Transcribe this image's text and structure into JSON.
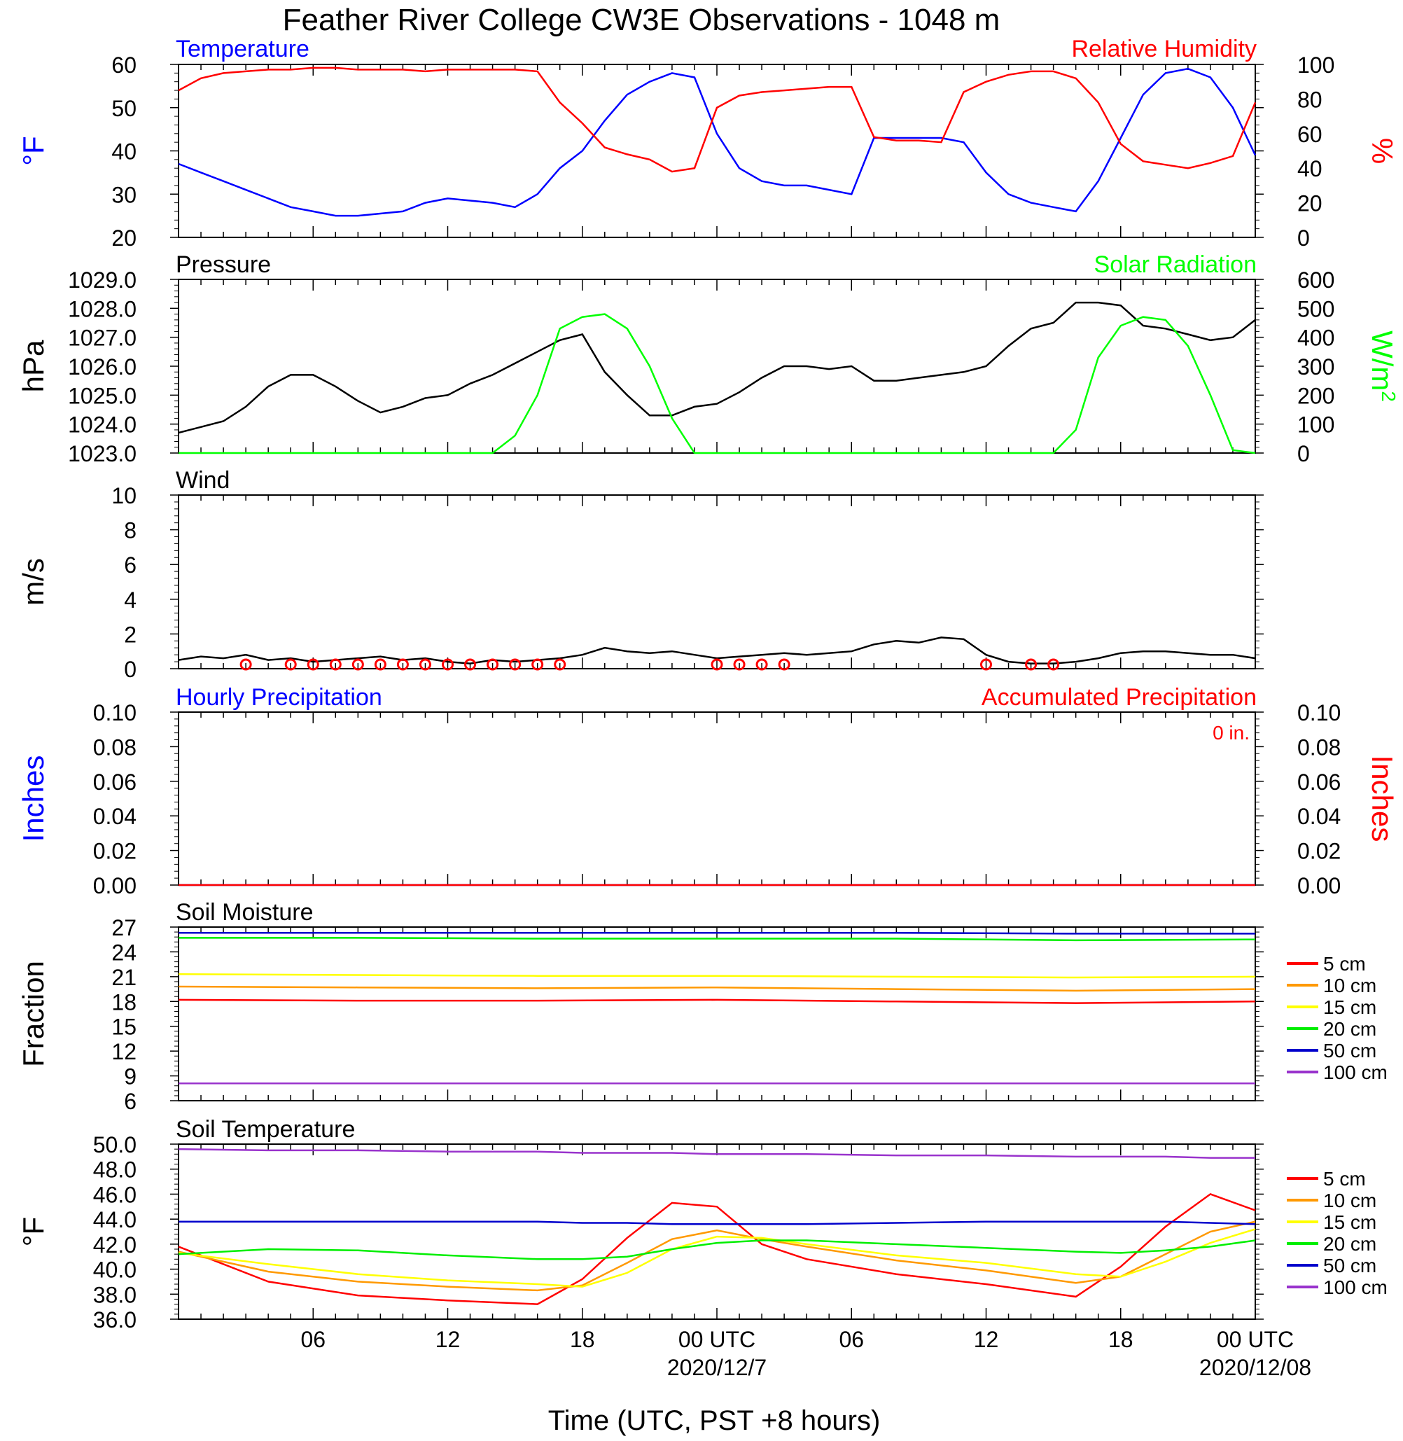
{
  "title": "Feather River College CW3E Observations - 1048 m",
  "x_axis": {
    "title": "Time (UTC, PST +8 hours)",
    "tick_labels": [
      "06",
      "12",
      "18",
      "00 UTC",
      "06",
      "12",
      "18",
      "00 UTC"
    ],
    "date_labels": [
      "2020/12/7",
      "2020/12/08"
    ]
  },
  "colors": {
    "temperature": "#0000ff",
    "humidity": "#ff0000",
    "pressure": "#000000",
    "solar": "#00ff00",
    "wind": "#000000",
    "wind_barbs": "#ff0000",
    "precip_hourly": "#0000ff",
    "precip_accum": "#ff0000",
    "soil_5cm": "#ff0000",
    "soil_10cm": "#ff9900",
    "soil_15cm": "#ffff00",
    "soil_20cm": "#00ee00",
    "soil_50cm": "#0000cc",
    "soil_100cm": "#9933cc"
  },
  "chart_data": [
    {
      "type": "line",
      "panel": "temperature-humidity",
      "left_title": "Temperature",
      "right_title": "Relative Humidity",
      "left_unit": "°F",
      "right_unit": "%",
      "left_ticks": [
        "60",
        "50",
        "40",
        "30",
        "20"
      ],
      "right_ticks": [
        "100",
        "80",
        "60",
        "40",
        "20",
        "0"
      ],
      "ylim_left": [
        20,
        60
      ],
      "ylim_right": [
        0,
        100
      ],
      "x_hours": [
        1,
        2,
        3,
        4,
        5,
        6,
        7,
        8,
        9,
        10,
        11,
        12,
        13,
        14,
        15,
        16,
        17,
        18,
        19,
        20,
        21,
        22,
        23,
        24,
        25,
        26,
        27,
        28,
        29,
        30,
        31,
        32,
        33,
        34,
        35,
        36,
        37,
        38,
        39,
        40,
        41,
        42,
        43,
        44,
        45,
        46,
        47,
        48,
        49
      ],
      "series": [
        {
          "name": "Temperature",
          "axis": "left",
          "values": [
            37,
            35,
            33,
            31,
            29,
            27,
            26,
            25,
            25,
            25.5,
            26,
            28,
            29,
            28.5,
            28,
            27,
            30,
            36,
            40,
            47,
            53,
            56,
            58,
            57,
            44,
            36,
            33,
            32,
            32,
            31,
            30,
            43,
            43,
            43,
            43,
            42,
            35,
            30,
            28,
            27,
            26,
            33,
            43,
            53,
            58,
            59,
            57,
            50,
            39
          ]
        },
        {
          "name": "Relative Humidity",
          "axis": "right",
          "values": [
            85,
            92,
            95,
            96,
            97,
            97,
            98,
            98,
            97,
            97,
            97,
            96,
            97,
            97,
            97,
            97,
            96,
            78,
            66,
            52,
            48,
            45,
            38,
            40,
            75,
            82,
            84,
            85,
            86,
            87,
            87,
            58,
            56,
            56,
            55,
            84,
            90,
            94,
            96,
            96,
            92,
            78,
            54,
            44,
            42,
            40,
            43,
            47,
            78
          ]
        }
      ]
    },
    {
      "type": "line",
      "panel": "pressure-solar",
      "left_title": "Pressure",
      "right_title": "Solar Radiation",
      "left_unit": "hPa",
      "right_unit": "W/m",
      "right_unit_sup": "2",
      "left_ticks": [
        "1029.0",
        "1028.0",
        "1027.0",
        "1026.0",
        "1025.0",
        "1024.0",
        "1023.0"
      ],
      "right_ticks": [
        "600",
        "500",
        "400",
        "300",
        "200",
        "100",
        "0"
      ],
      "ylim_left": [
        1023,
        1029
      ],
      "ylim_right": [
        0,
        600
      ],
      "x_hours": [
        1,
        2,
        3,
        4,
        5,
        6,
        7,
        8,
        9,
        10,
        11,
        12,
        13,
        14,
        15,
        16,
        17,
        18,
        19,
        20,
        21,
        22,
        23,
        24,
        25,
        26,
        27,
        28,
        29,
        30,
        31,
        32,
        33,
        34,
        35,
        36,
        37,
        38,
        39,
        40,
        41,
        42,
        43,
        44,
        45,
        46,
        47,
        48,
        49
      ],
      "series": [
        {
          "name": "Pressure",
          "axis": "left",
          "values": [
            1023.7,
            1023.9,
            1024.1,
            1024.6,
            1025.3,
            1025.7,
            1025.7,
            1025.3,
            1024.8,
            1024.4,
            1024.6,
            1024.9,
            1025.0,
            1025.4,
            1025.7,
            1026.1,
            1026.5,
            1026.9,
            1027.1,
            1025.8,
            1025.0,
            1024.3,
            1024.3,
            1024.6,
            1024.7,
            1025.1,
            1025.6,
            1026.0,
            1026.0,
            1025.9,
            1026.0,
            1025.5,
            1025.5,
            1025.6,
            1025.7,
            1025.8,
            1026.0,
            1026.7,
            1027.3,
            1027.5,
            1028.2,
            1028.2,
            1028.1,
            1027.4,
            1027.3,
            1027.1,
            1026.9,
            1027.0,
            1027.6
          ]
        },
        {
          "name": "Solar Radiation",
          "axis": "right",
          "values": [
            0,
            0,
            0,
            0,
            0,
            0,
            0,
            0,
            0,
            0,
            0,
            0,
            0,
            0,
            0,
            60,
            200,
            430,
            470,
            480,
            430,
            300,
            120,
            0,
            0,
            0,
            0,
            0,
            0,
            0,
            0,
            0,
            0,
            0,
            0,
            0,
            0,
            0,
            0,
            0,
            80,
            330,
            440,
            470,
            460,
            370,
            200,
            10,
            0
          ]
        }
      ]
    },
    {
      "type": "line",
      "panel": "wind",
      "left_title": "Wind",
      "left_unit": "m/s",
      "left_ticks": [
        "10",
        "8",
        "6",
        "4",
        "2",
        "0"
      ],
      "ylim_left": [
        0,
        10
      ],
      "x_hours": [
        1,
        2,
        3,
        4,
        5,
        6,
        7,
        8,
        9,
        10,
        11,
        12,
        13,
        14,
        15,
        16,
        17,
        18,
        19,
        20,
        21,
        22,
        23,
        24,
        25,
        26,
        27,
        28,
        29,
        30,
        31,
        32,
        33,
        34,
        35,
        36,
        37,
        38,
        39,
        40,
        41,
        42,
        43,
        44,
        45,
        46,
        47,
        48,
        49
      ],
      "series": [
        {
          "name": "Wind speed",
          "values": [
            0.5,
            0.7,
            0.6,
            0.8,
            0.5,
            0.6,
            0.4,
            0.5,
            0.6,
            0.7,
            0.5,
            0.6,
            0.4,
            0.3,
            0.5,
            0.4,
            0.5,
            0.6,
            0.8,
            1.2,
            1.0,
            0.9,
            1.0,
            0.8,
            0.6,
            0.7,
            0.8,
            0.9,
            0.8,
            0.9,
            1.0,
            1.4,
            1.6,
            1.5,
            1.8,
            1.7,
            0.8,
            0.4,
            0.3,
            0.3,
            0.4,
            0.6,
            0.9,
            1.0,
            1.0,
            0.9,
            0.8,
            0.8,
            0.6
          ]
        }
      ],
      "calm_marker_hours": [
        4,
        6,
        7,
        8,
        9,
        10,
        11,
        12,
        13,
        14,
        15,
        16,
        17,
        18,
        25,
        26,
        27,
        28,
        37,
        39,
        40
      ]
    },
    {
      "type": "line",
      "panel": "precipitation",
      "left_title": "Hourly Precipitation",
      "right_title": "Accumulated Precipitation",
      "accum_label": "0 in.",
      "left_unit": "Inches",
      "right_unit": "Inches",
      "left_ticks": [
        "0.10",
        "0.08",
        "0.06",
        "0.04",
        "0.02",
        "0.00"
      ],
      "right_ticks": [
        "0.10",
        "0.08",
        "0.06",
        "0.04",
        "0.02",
        "0.00"
      ],
      "ylim_left": [
        0,
        0.1
      ],
      "ylim_right": [
        0,
        0.1
      ],
      "x_hours": [
        1,
        49
      ],
      "series": [
        {
          "name": "Hourly Precipitation",
          "axis": "left",
          "values": [
            0,
            0
          ]
        },
        {
          "name": "Accumulated Precipitation",
          "axis": "right",
          "values": [
            0,
            0
          ]
        }
      ]
    },
    {
      "type": "line",
      "panel": "soil-moisture",
      "left_title": "Soil Moisture",
      "left_unit": "Fraction",
      "left_ticks": [
        "27",
        "24",
        "21",
        "18",
        "15",
        "12",
        "9",
        "6"
      ],
      "ylim_left": [
        6,
        27
      ],
      "x_hours": [
        1,
        9,
        17,
        25,
        33,
        41,
        49
      ],
      "series": [
        {
          "name": "5 cm",
          "values": [
            18.2,
            18.1,
            18.1,
            18.2,
            18.0,
            17.8,
            18.0
          ]
        },
        {
          "name": "10 cm",
          "values": [
            19.8,
            19.7,
            19.6,
            19.7,
            19.5,
            19.3,
            19.5
          ]
        },
        {
          "name": "15 cm",
          "values": [
            21.3,
            21.2,
            21.1,
            21.1,
            21.0,
            20.9,
            21.0
          ]
        },
        {
          "name": "20 cm",
          "values": [
            25.7,
            25.7,
            25.6,
            25.6,
            25.6,
            25.4,
            25.5
          ]
        },
        {
          "name": "50 cm",
          "values": [
            26.3,
            26.3,
            26.3,
            26.3,
            26.3,
            26.2,
            26.2
          ]
        },
        {
          "name": "100 cm",
          "values": [
            8.1,
            8.1,
            8.1,
            8.1,
            8.1,
            8.1,
            8.1
          ]
        }
      ]
    },
    {
      "type": "line",
      "panel": "soil-temperature",
      "left_title": "Soil Temperature",
      "left_unit": "°F",
      "left_ticks": [
        "50.0",
        "48.0",
        "46.0",
        "44.0",
        "42.0",
        "40.0",
        "38.0",
        "36.0"
      ],
      "ylim_left": [
        36,
        50
      ],
      "x_hours": [
        1,
        5,
        9,
        13,
        17,
        19,
        21,
        23,
        25,
        27,
        29,
        33,
        37,
        41,
        43,
        45,
        47,
        49
      ],
      "series": [
        {
          "name": "5 cm",
          "values": [
            41.8,
            39.0,
            37.9,
            37.5,
            37.2,
            39.2,
            42.5,
            45.3,
            45.0,
            42.0,
            40.8,
            39.6,
            38.8,
            37.8,
            40.2,
            43.4,
            46.0,
            44.7
          ]
        },
        {
          "name": "10 cm",
          "values": [
            41.4,
            39.8,
            39.0,
            38.6,
            38.3,
            38.7,
            40.5,
            42.4,
            43.1,
            42.4,
            41.8,
            40.7,
            39.9,
            38.9,
            39.4,
            41.2,
            43.0,
            43.8
          ]
        },
        {
          "name": "15 cm",
          "values": [
            41.3,
            40.4,
            39.6,
            39.1,
            38.8,
            38.6,
            39.7,
            41.6,
            42.6,
            42.5,
            42.0,
            41.1,
            40.5,
            39.6,
            39.4,
            40.6,
            42.1,
            43.2
          ]
        },
        {
          "name": "20 cm",
          "values": [
            41.2,
            41.6,
            41.5,
            41.1,
            40.8,
            40.8,
            41.0,
            41.6,
            42.1,
            42.3,
            42.3,
            42.0,
            41.7,
            41.4,
            41.3,
            41.5,
            41.8,
            42.3
          ]
        },
        {
          "name": "50 cm",
          "values": [
            43.8,
            43.8,
            43.8,
            43.8,
            43.8,
            43.7,
            43.7,
            43.6,
            43.6,
            43.6,
            43.6,
            43.7,
            43.8,
            43.8,
            43.8,
            43.8,
            43.7,
            43.6
          ]
        },
        {
          "name": "100 cm",
          "values": [
            49.6,
            49.5,
            49.5,
            49.4,
            49.4,
            49.3,
            49.3,
            49.3,
            49.2,
            49.2,
            49.2,
            49.1,
            49.1,
            49.0,
            49.0,
            49.0,
            48.9,
            48.9
          ]
        }
      ]
    }
  ],
  "soil_legend": [
    "5 cm",
    "10 cm",
    "15 cm",
    "20 cm",
    "50 cm",
    "100 cm"
  ]
}
